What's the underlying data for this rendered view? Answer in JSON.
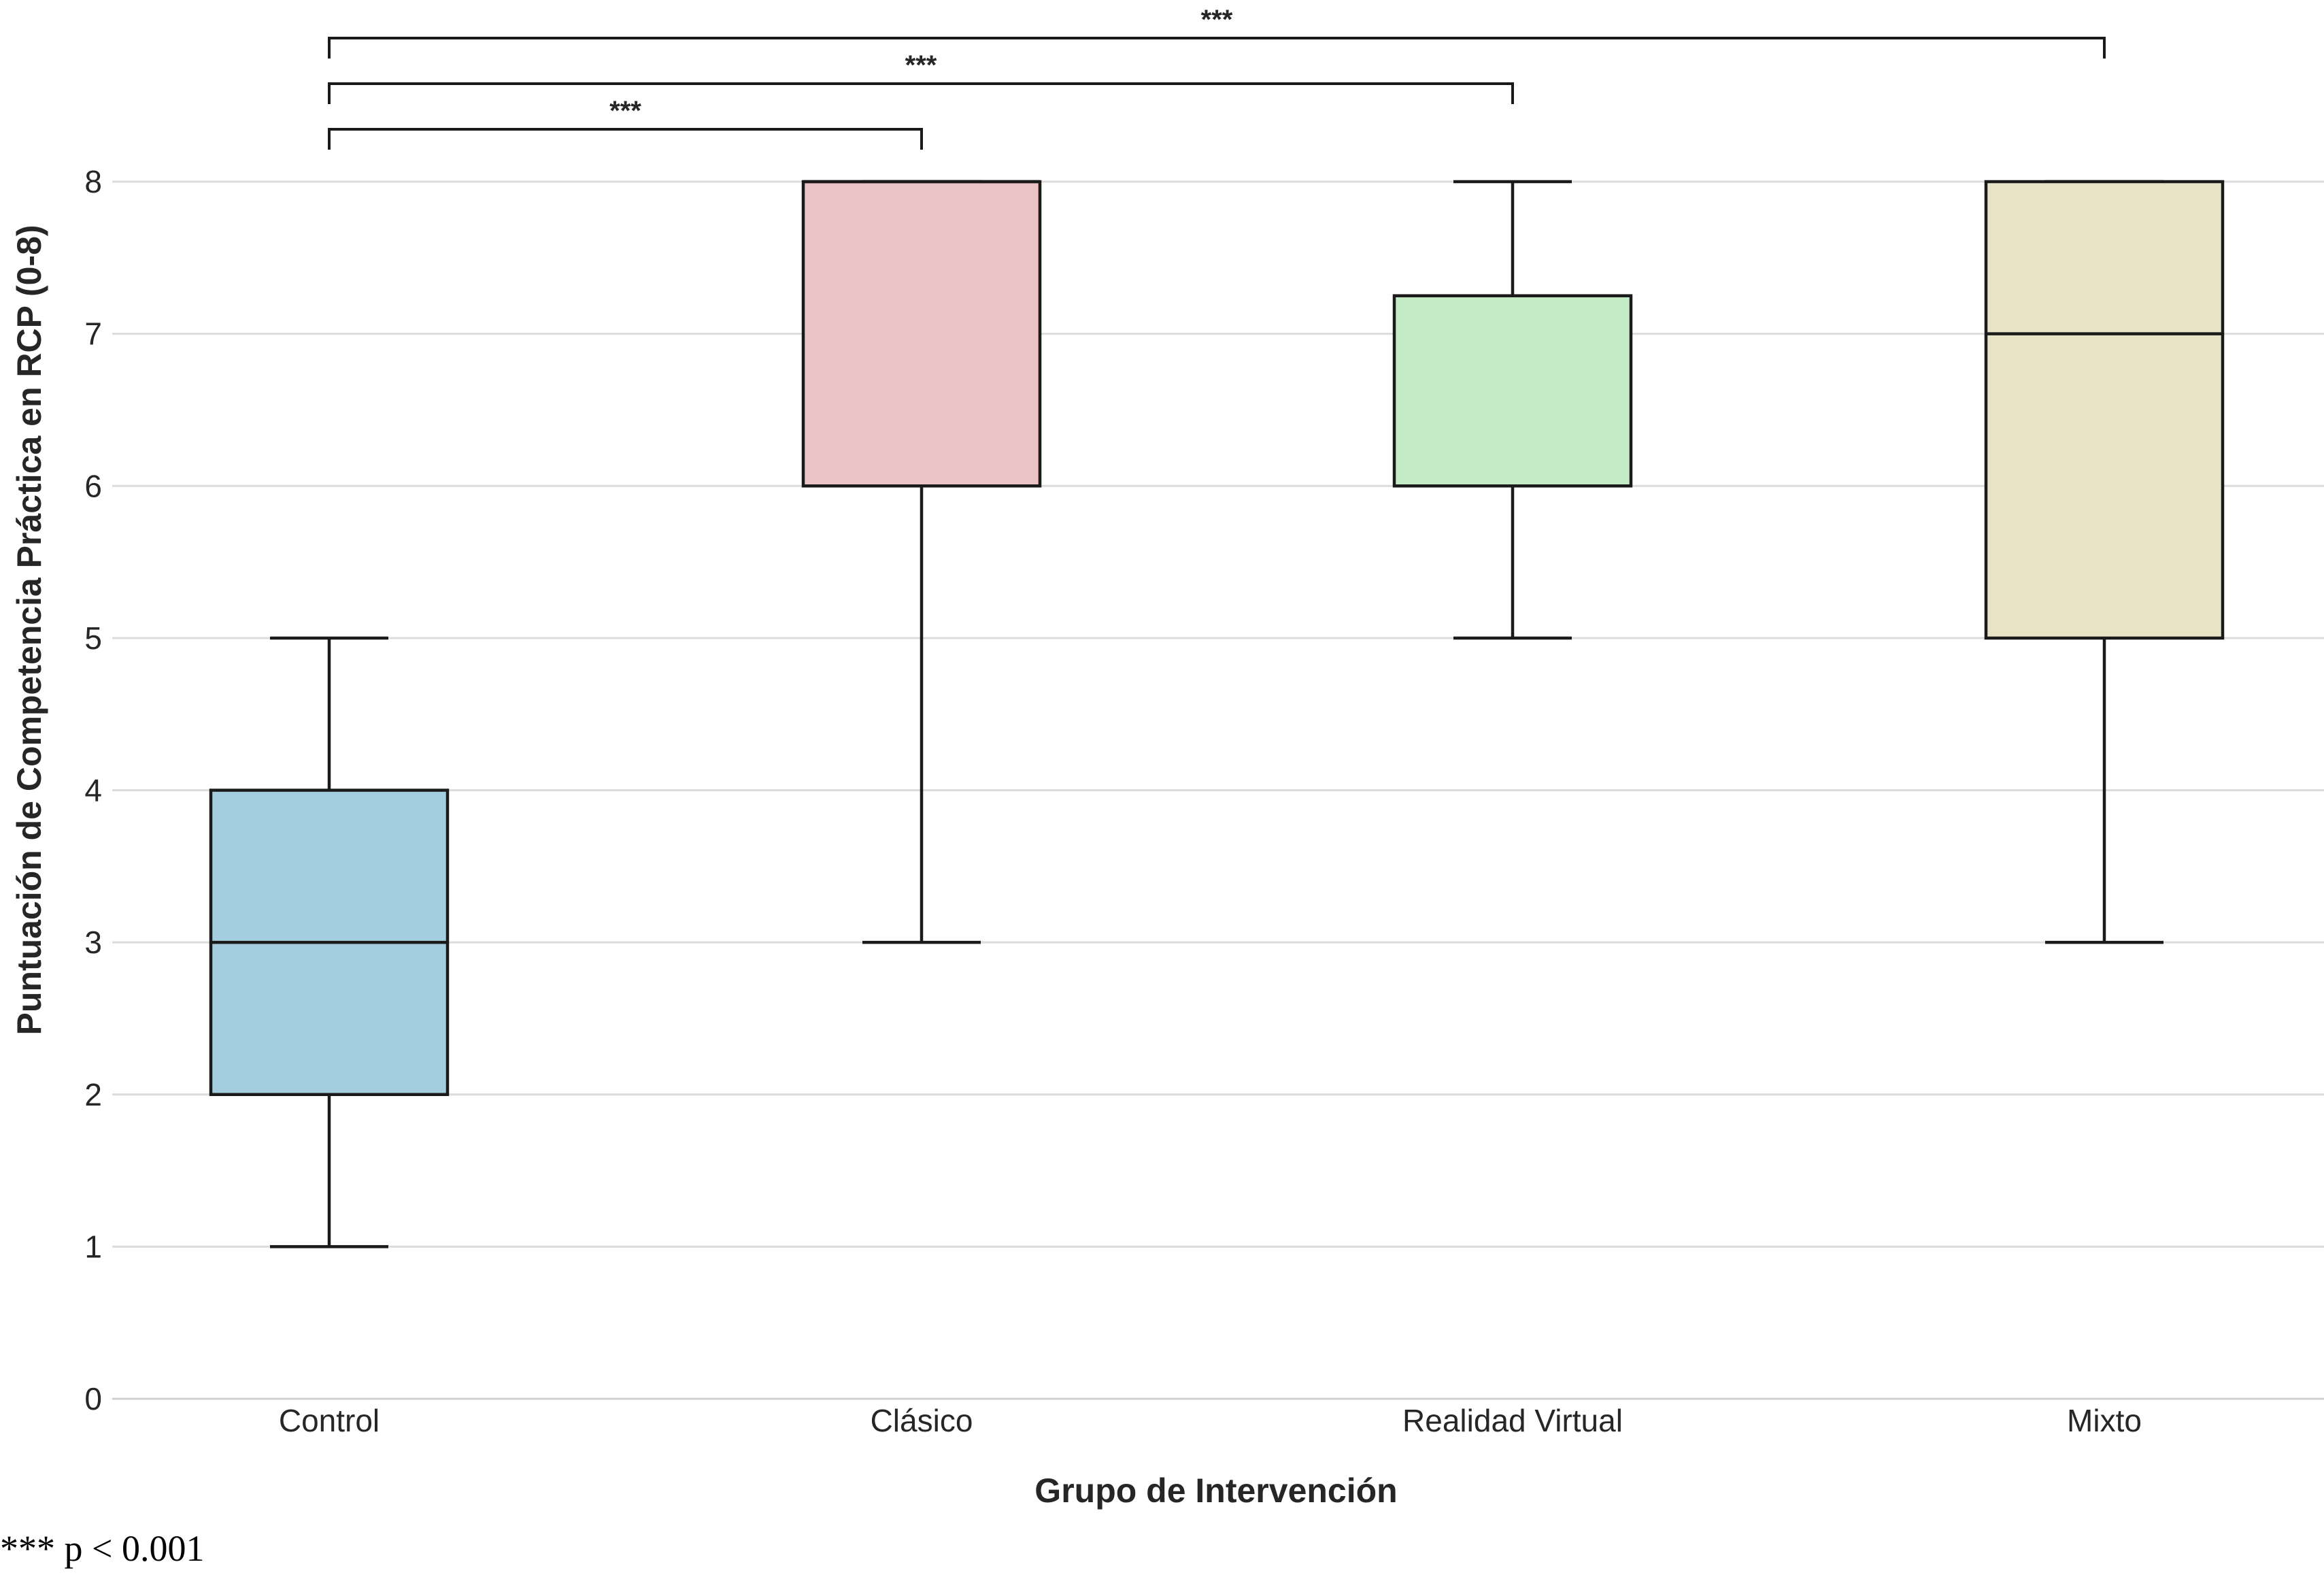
{
  "chart_data": {
    "type": "boxplot",
    "title": "",
    "xlabel": "Grupo de Intervención",
    "ylabel": "Puntuación de Competencia Práctica en RCP (0-8)",
    "ylim": [
      0,
      8
    ],
    "yticks": [
      0,
      1,
      2,
      3,
      4,
      5,
      6,
      7,
      8
    ],
    "grid": "horizontal",
    "categories": [
      "Control",
      "Clásico",
      "Realidad Virtual",
      "Mixto"
    ],
    "boxes": [
      {
        "category": "Control",
        "whisker_low": 1,
        "q1": 2,
        "median": 3,
        "q3": 4,
        "whisker_high": 5,
        "color": "#a4cddf"
      },
      {
        "category": "Clásico",
        "whisker_low": 3,
        "q1": 6,
        "median": 8,
        "q3": 8,
        "whisker_high": 8,
        "color": "#eac3c5"
      },
      {
        "category": "Realidad Virtual",
        "whisker_low": 5,
        "q1": 6,
        "median": 6,
        "q3": 7.25,
        "whisker_high": 8,
        "color": "#c5ebc6"
      },
      {
        "category": "Mixto",
        "whisker_low": 3,
        "q1": 5,
        "median": 7,
        "q3": 8,
        "whisker_high": 8,
        "color": "#e9e3c5"
      }
    ],
    "significance": [
      {
        "from": "Control",
        "to": "Clásico",
        "label": "***"
      },
      {
        "from": "Control",
        "to": "Realidad Virtual",
        "label": "***"
      },
      {
        "from": "Control",
        "to": "Mixto",
        "label": "***"
      }
    ]
  },
  "footnote": "*** p < 0.001"
}
